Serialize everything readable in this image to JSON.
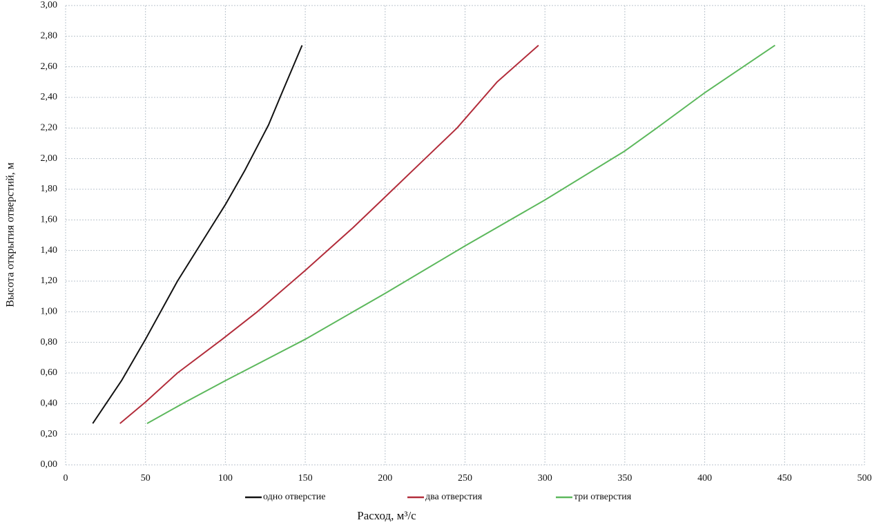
{
  "chart_data": {
    "type": "line",
    "x_label": "Расход, м³/с",
    "y_label": "Высота открытия отверстий, м",
    "xlim": [
      0,
      500
    ],
    "xticks": [
      0,
      50,
      100,
      150,
      200,
      250,
      300,
      350,
      400,
      450,
      500
    ],
    "ylim": [
      0,
      3
    ],
    "yticks": [
      {
        "value": 0,
        "label": "0,00"
      },
      {
        "value": 0.2,
        "label": "0,20"
      },
      {
        "value": 0.4,
        "label": "0,40"
      },
      {
        "value": 0.6,
        "label": "0,60"
      },
      {
        "value": 0.8,
        "label": "0,80"
      },
      {
        "value": 1.0,
        "label": "1,00"
      },
      {
        "value": 1.2,
        "label": "1,20"
      },
      {
        "value": 1.4,
        "label": "1,40"
      },
      {
        "value": 1.6,
        "label": "1,60"
      },
      {
        "value": 1.8,
        "label": "1,80"
      },
      {
        "value": 2.0,
        "label": "2,00"
      },
      {
        "value": 2.2,
        "label": "2,20"
      },
      {
        "value": 2.4,
        "label": "2,40"
      },
      {
        "value": 2.6,
        "label": "2,60"
      },
      {
        "value": 2.8,
        "label": "2,80"
      },
      {
        "value": 3.0,
        "label": "3,00"
      }
    ],
    "grid": true,
    "legend": "bottom",
    "series": [
      {
        "name": "одно отверстие",
        "color": "#111111",
        "x": [
          17,
          35,
          50,
          70,
          88,
          100,
          112,
          120,
          127,
          135,
          148
        ],
        "values": [
          0.27,
          0.55,
          0.82,
          1.2,
          1.5,
          1.7,
          1.92,
          2.08,
          2.22,
          2.42,
          2.74
        ]
      },
      {
        "name": "два отверстия",
        "color": "#b22c3a",
        "x": [
          34,
          50,
          70,
          98,
          120,
          150,
          180,
          200,
          225,
          245,
          270,
          296
        ],
        "values": [
          0.27,
          0.41,
          0.6,
          0.82,
          1.0,
          1.27,
          1.55,
          1.75,
          2.0,
          2.2,
          2.5,
          2.74
        ]
      },
      {
        "name": "три отверстия",
        "color": "#5cb85c",
        "x": [
          51,
          75,
          100,
          150,
          200,
          250,
          300,
          350,
          370,
          400,
          444
        ],
        "values": [
          0.27,
          0.41,
          0.55,
          0.82,
          1.12,
          1.43,
          1.73,
          2.05,
          2.2,
          2.43,
          2.74
        ]
      }
    ]
  }
}
